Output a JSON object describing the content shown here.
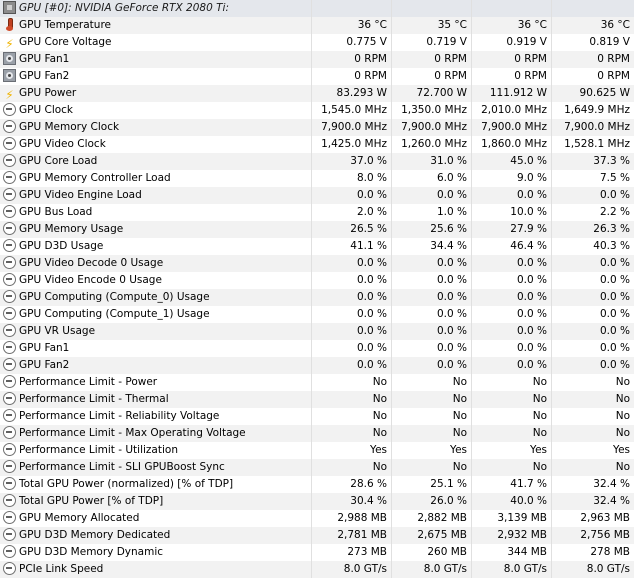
{
  "header": {
    "title": "GPU [#0]: NVIDIA GeForce RTX 2080 Ti:"
  },
  "rows": [
    {
      "label": "GPU Temperature",
      "icon": "thermometer-icon",
      "values": [
        "36 °C",
        "35 °C",
        "36 °C",
        "36 °C"
      ]
    },
    {
      "label": "GPU Core Voltage",
      "icon": "lightning-icon",
      "values": [
        "0.775 V",
        "0.719 V",
        "0.919 V",
        "0.819 V"
      ]
    },
    {
      "label": "GPU Fan1",
      "icon": "fan-icon",
      "values": [
        "0 RPM",
        "0 RPM",
        "0 RPM",
        "0 RPM"
      ]
    },
    {
      "label": "GPU Fan2",
      "icon": "fan-icon",
      "values": [
        "0 RPM",
        "0 RPM",
        "0 RPM",
        "0 RPM"
      ]
    },
    {
      "label": "GPU Power",
      "icon": "lightning-icon",
      "values": [
        "83.293 W",
        "72.700 W",
        "111.912 W",
        "90.625 W"
      ]
    },
    {
      "label": "GPU Clock",
      "icon": "clock-icon",
      "values": [
        "1,545.0 MHz",
        "1,350.0 MHz",
        "2,010.0 MHz",
        "1,649.9 MHz"
      ]
    },
    {
      "label": "GPU Memory Clock",
      "icon": "clock-icon",
      "values": [
        "7,900.0 MHz",
        "7,900.0 MHz",
        "7,900.0 MHz",
        "7,900.0 MHz"
      ]
    },
    {
      "label": "GPU Video Clock",
      "icon": "clock-icon",
      "values": [
        "1,425.0 MHz",
        "1,260.0 MHz",
        "1,860.0 MHz",
        "1,528.1 MHz"
      ]
    },
    {
      "label": "GPU Core Load",
      "icon": "clock-icon",
      "values": [
        "37.0 %",
        "31.0 %",
        "45.0 %",
        "37.3 %"
      ]
    },
    {
      "label": "GPU Memory Controller Load",
      "icon": "clock-icon",
      "values": [
        "8.0 %",
        "6.0 %",
        "9.0 %",
        "7.5 %"
      ]
    },
    {
      "label": "GPU Video Engine Load",
      "icon": "clock-icon",
      "values": [
        "0.0 %",
        "0.0 %",
        "0.0 %",
        "0.0 %"
      ]
    },
    {
      "label": "GPU Bus Load",
      "icon": "clock-icon",
      "values": [
        "2.0 %",
        "1.0 %",
        "10.0 %",
        "2.2 %"
      ]
    },
    {
      "label": "GPU Memory Usage",
      "icon": "clock-icon",
      "values": [
        "26.5 %",
        "25.6 %",
        "27.9 %",
        "26.3 %"
      ]
    },
    {
      "label": "GPU D3D Usage",
      "icon": "clock-icon",
      "values": [
        "41.1 %",
        "34.4 %",
        "46.4 %",
        "40.3 %"
      ]
    },
    {
      "label": "GPU Video Decode 0 Usage",
      "icon": "clock-icon",
      "values": [
        "0.0 %",
        "0.0 %",
        "0.0 %",
        "0.0 %"
      ]
    },
    {
      "label": "GPU Video Encode 0 Usage",
      "icon": "clock-icon",
      "values": [
        "0.0 %",
        "0.0 %",
        "0.0 %",
        "0.0 %"
      ]
    },
    {
      "label": "GPU Computing (Compute_0) Usage",
      "icon": "clock-icon",
      "values": [
        "0.0 %",
        "0.0 %",
        "0.0 %",
        "0.0 %"
      ]
    },
    {
      "label": "GPU Computing (Compute_1) Usage",
      "icon": "clock-icon",
      "values": [
        "0.0 %",
        "0.0 %",
        "0.0 %",
        "0.0 %"
      ]
    },
    {
      "label": "GPU VR Usage",
      "icon": "clock-icon",
      "values": [
        "0.0 %",
        "0.0 %",
        "0.0 %",
        "0.0 %"
      ]
    },
    {
      "label": "GPU Fan1",
      "icon": "clock-icon",
      "values": [
        "0.0 %",
        "0.0 %",
        "0.0 %",
        "0.0 %"
      ]
    },
    {
      "label": "GPU Fan2",
      "icon": "clock-icon",
      "values": [
        "0.0 %",
        "0.0 %",
        "0.0 %",
        "0.0 %"
      ]
    },
    {
      "label": "Performance Limit - Power",
      "icon": "clock-icon",
      "values": [
        "No",
        "No",
        "No",
        "No"
      ]
    },
    {
      "label": "Performance Limit - Thermal",
      "icon": "clock-icon",
      "values": [
        "No",
        "No",
        "No",
        "No"
      ]
    },
    {
      "label": "Performance Limit - Reliability Voltage",
      "icon": "clock-icon",
      "values": [
        "No",
        "No",
        "No",
        "No"
      ]
    },
    {
      "label": "Performance Limit - Max Operating Voltage",
      "icon": "clock-icon",
      "values": [
        "No",
        "No",
        "No",
        "No"
      ]
    },
    {
      "label": "Performance Limit - Utilization",
      "icon": "clock-icon",
      "values": [
        "Yes",
        "Yes",
        "Yes",
        "Yes"
      ]
    },
    {
      "label": "Performance Limit - SLI GPUBoost Sync",
      "icon": "clock-icon",
      "values": [
        "No",
        "No",
        "No",
        "No"
      ]
    },
    {
      "label": "Total GPU Power (normalized) [% of TDP]",
      "icon": "clock-icon",
      "values": [
        "28.6 %",
        "25.1 %",
        "41.7 %",
        "32.4 %"
      ]
    },
    {
      "label": "Total GPU Power [% of TDP]",
      "icon": "clock-icon",
      "values": [
        "30.4 %",
        "26.0 %",
        "40.0 %",
        "32.4 %"
      ]
    },
    {
      "label": "GPU Memory Allocated",
      "icon": "clock-icon",
      "values": [
        "2,988 MB",
        "2,882 MB",
        "3,139 MB",
        "2,963 MB"
      ]
    },
    {
      "label": "GPU D3D Memory Dedicated",
      "icon": "clock-icon",
      "values": [
        "2,781 MB",
        "2,675 MB",
        "2,932 MB",
        "2,756 MB"
      ]
    },
    {
      "label": "GPU D3D Memory Dynamic",
      "icon": "clock-icon",
      "values": [
        "273 MB",
        "260 MB",
        "344 MB",
        "278 MB"
      ]
    },
    {
      "label": "PCIe Link Speed",
      "icon": "clock-icon",
      "values": [
        "8.0 GT/s",
        "8.0 GT/s",
        "8.0 GT/s",
        "8.0 GT/s"
      ]
    }
  ]
}
